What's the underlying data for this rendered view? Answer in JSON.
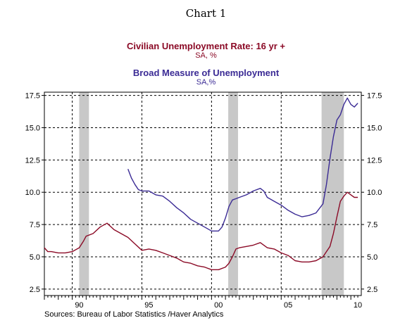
{
  "title": "Chart 1",
  "series_titles": {
    "s1": {
      "name": "Civilian Unemployment Rate: 16 yr +",
      "unit": "SA, %",
      "color": "#8b0a26"
    },
    "s2": {
      "name": "Broad Measure of Unemployment",
      "unit": "SA,%",
      "color": "#3b2b95"
    }
  },
  "source": "Sources:  Bureau of Labor Statistics /Haver Analytics",
  "chart_data": {
    "type": "line",
    "x_range": [
      1988.0,
      2010.75
    ],
    "ylim": [
      2.0,
      17.75
    ],
    "y_ticks": [
      "2.5",
      "5.0",
      "7.5",
      "10.0",
      "12.5",
      "15.0",
      "17.5"
    ],
    "x_ticks": [
      {
        "value": 1990,
        "label": "90"
      },
      {
        "value": 1995,
        "label": "95"
      },
      {
        "value": 2000,
        "label": "00"
      },
      {
        "value": 2005,
        "label": "05"
      },
      {
        "value": 2010,
        "label": "10"
      }
    ],
    "grid": "dashed vertical at 1990, 1995, 2000, 2005; dashed horizontal at each y tick",
    "recessions": [
      {
        "start": 1990.5,
        "end": 1991.2
      },
      {
        "start": 2001.2,
        "end": 2001.9
      },
      {
        "start": 2007.9,
        "end": 2009.5
      }
    ],
    "series": [
      {
        "name": "Civilian Unemployment Rate: 16 yr +",
        "color": "#8b0a26",
        "x": [
          1988.0,
          1988.25,
          1988.5,
          1989.0,
          1989.5,
          1990.0,
          1990.5,
          1990.8,
          1991.0,
          1991.5,
          1992.0,
          1992.5,
          1993.0,
          1993.5,
          1994.0,
          1994.5,
          1995.0,
          1995.5,
          1996.0,
          1996.5,
          1997.0,
          1997.5,
          1998.0,
          1998.5,
          1999.0,
          1999.5,
          2000.0,
          2000.5,
          2001.0,
          2001.25,
          2001.5,
          2001.75,
          2002.0,
          2002.5,
          2003.0,
          2003.5,
          2004.0,
          2004.5,
          2005.0,
          2005.5,
          2006.0,
          2006.5,
          2007.0,
          2007.5,
          2008.0,
          2008.25,
          2008.5,
          2008.75,
          2009.0,
          2009.25,
          2009.5,
          2009.75,
          2010.0,
          2010.25,
          2010.5
        ],
        "y": [
          5.7,
          5.4,
          5.4,
          5.3,
          5.3,
          5.4,
          5.7,
          6.2,
          6.6,
          6.8,
          7.3,
          7.6,
          7.1,
          6.8,
          6.5,
          6.0,
          5.5,
          5.6,
          5.5,
          5.3,
          5.1,
          4.9,
          4.6,
          4.5,
          4.3,
          4.2,
          4.0,
          4.0,
          4.2,
          4.5,
          5.0,
          5.6,
          5.7,
          5.8,
          5.9,
          6.1,
          5.7,
          5.6,
          5.3,
          5.1,
          4.7,
          4.6,
          4.6,
          4.7,
          5.0,
          5.4,
          5.8,
          6.8,
          8.1,
          9.3,
          9.7,
          10.0,
          9.8,
          9.6,
          9.6
        ]
      },
      {
        "name": "Broad Measure of Unemployment",
        "color": "#3b2b95",
        "x": [
          1994.0,
          1994.25,
          1994.5,
          1994.75,
          1995.0,
          1995.5,
          1996.0,
          1996.5,
          1997.0,
          1997.5,
          1998.0,
          1998.5,
          1999.0,
          1999.5,
          2000.0,
          2000.5,
          2000.75,
          2001.0,
          2001.25,
          2001.5,
          2001.75,
          2002.0,
          2002.5,
          2003.0,
          2003.5,
          2003.75,
          2004.0,
          2004.5,
          2005.0,
          2005.5,
          2006.0,
          2006.5,
          2007.0,
          2007.5,
          2008.0,
          2008.25,
          2008.5,
          2008.75,
          2009.0,
          2009.25,
          2009.5,
          2009.75,
          2010.0,
          2010.25,
          2010.5
        ],
        "y": [
          11.8,
          11.1,
          10.6,
          10.2,
          10.1,
          10.1,
          9.8,
          9.7,
          9.3,
          8.8,
          8.4,
          7.9,
          7.6,
          7.3,
          7.0,
          7.0,
          7.3,
          8.0,
          8.9,
          9.4,
          9.5,
          9.6,
          9.8,
          10.1,
          10.3,
          10.1,
          9.6,
          9.3,
          9.0,
          8.6,
          8.3,
          8.1,
          8.2,
          8.4,
          9.1,
          10.6,
          12.6,
          14.3,
          15.6,
          16.0,
          16.8,
          17.3,
          16.8,
          16.6,
          16.9
        ]
      }
    ]
  }
}
